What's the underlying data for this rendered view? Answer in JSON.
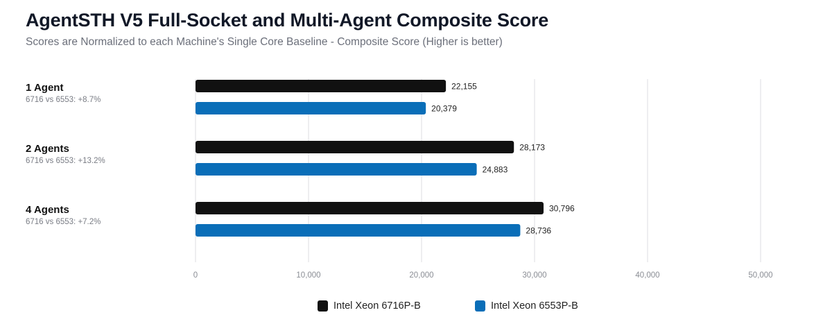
{
  "header": {
    "title": "AgentSTH V5 Full-Socket and Multi-Agent Composite Score",
    "subtitle": "Scores are Normalized to each Machine's Single Core Baseline - Composite Score (Higher is better)"
  },
  "categories_info": [
    {
      "label": "1 Agent",
      "note": "6716 vs 6553: +8.7%"
    },
    {
      "label": "2 Agents",
      "note": "6716 vs 6553: +13.2%"
    },
    {
      "label": "4 Agents",
      "note": "6716 vs 6553: +7.2%"
    }
  ],
  "chart_data": {
    "type": "bar",
    "orientation": "horizontal",
    "title": "AgentSTH V5 Full-Socket and Multi-Agent Composite Score",
    "subtitle": "Scores are Normalized to each Machine's Single Core Baseline - Composite Score (Higher is better)",
    "categories": [
      "1 Agent",
      "2 Agents",
      "4 Agents"
    ],
    "series": [
      {
        "name": "Intel Xeon 6716P-B",
        "color": "#111111",
        "values": [
          22155,
          28173,
          30796
        ],
        "labels": [
          "22,155",
          "28,173",
          "30,796"
        ]
      },
      {
        "name": "Intel Xeon 6553P-B",
        "color": "#0a6eb8",
        "values": [
          20379,
          24883,
          28736
        ],
        "labels": [
          "20,379",
          "24,883",
          "28,736"
        ]
      }
    ],
    "xlabel": "",
    "ylabel": "",
    "xlim": [
      0,
      50000
    ],
    "xticks": [
      0,
      10000,
      20000,
      30000,
      40000,
      50000
    ],
    "xtick_labels": [
      "0",
      "10,000",
      "20,000",
      "30,000",
      "40,000",
      "50,000"
    ],
    "grid": true,
    "legend_position": "bottom-center"
  }
}
